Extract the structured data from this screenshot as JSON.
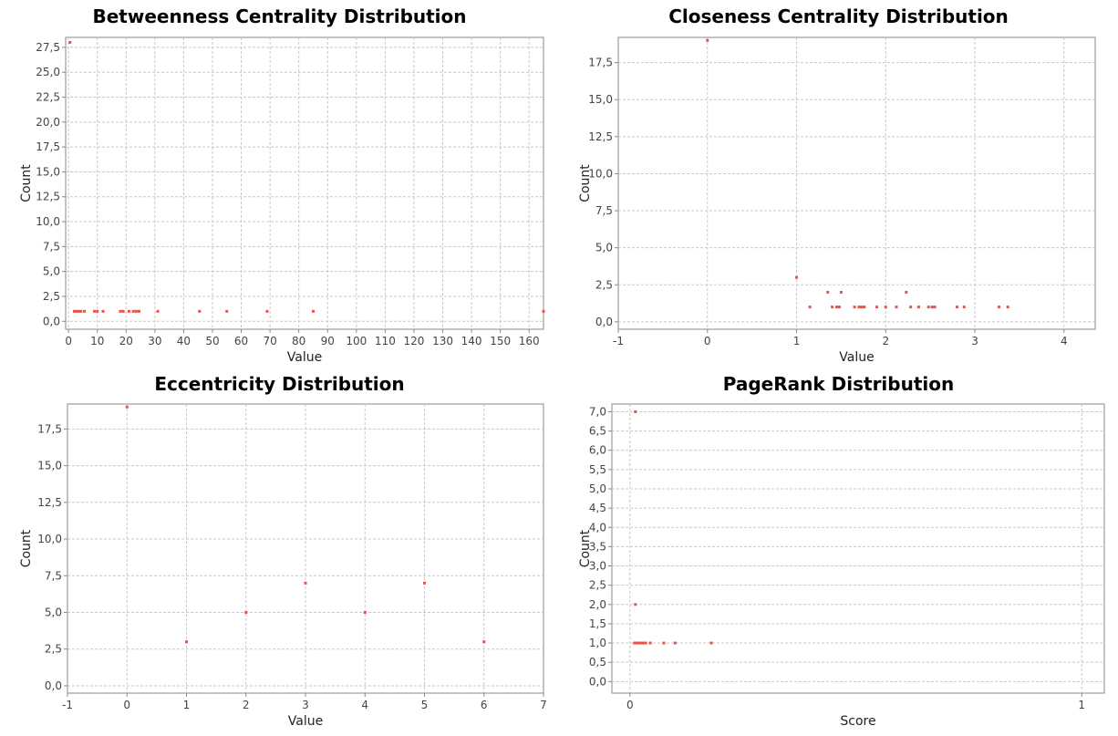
{
  "chart_data": [
    {
      "type": "scatter",
      "title": "Betweenness Centrality Distribution",
      "xlabel": "Value",
      "ylabel": "Count",
      "xlim": [
        -1,
        165
      ],
      "ylim": [
        -0.8,
        28.5
      ],
      "xticks": [
        0,
        10,
        20,
        30,
        40,
        50,
        60,
        70,
        80,
        90,
        100,
        110,
        120,
        130,
        140,
        150,
        160
      ],
      "xtick_labels": [
        "0",
        "10",
        "20",
        "30",
        "40",
        "50",
        "60",
        "70",
        "80",
        "90",
        "100",
        "110",
        "120",
        "130",
        "140",
        "150",
        "160"
      ],
      "yticks": [
        0,
        2.5,
        5,
        7.5,
        10,
        12.5,
        15,
        17.5,
        20,
        22.5,
        25,
        27.5
      ],
      "ytick_labels": [
        "0,0",
        "2,5",
        "5,0",
        "7,5",
        "10,0",
        "12,5",
        "15,0",
        "17,5",
        "20,0",
        "22,5",
        "25,0",
        "27,5"
      ],
      "color": "#e8524a",
      "points": [
        [
          0.5,
          28
        ],
        [
          2,
          1
        ],
        [
          2.8,
          1
        ],
        [
          3.5,
          1
        ],
        [
          4.3,
          1
        ],
        [
          5.5,
          1
        ],
        [
          9,
          1
        ],
        [
          10,
          1
        ],
        [
          12,
          1
        ],
        [
          18,
          1
        ],
        [
          19,
          1
        ],
        [
          21,
          1
        ],
        [
          22.5,
          1
        ],
        [
          23.5,
          1
        ],
        [
          24.5,
          1
        ],
        [
          31,
          1
        ],
        [
          45.5,
          1
        ],
        [
          55,
          1
        ],
        [
          69,
          1
        ],
        [
          85,
          1
        ],
        [
          165,
          1
        ]
      ]
    },
    {
      "type": "scatter",
      "title": "Closeness Centrality Distribution",
      "xlabel": "Value",
      "ylabel": "Count",
      "xlim": [
        -1,
        4.35
      ],
      "ylim": [
        -0.5,
        19.2
      ],
      "xticks": [
        -1,
        0,
        1,
        2,
        3,
        4
      ],
      "xtick_labels": [
        "-1",
        "0",
        "1",
        "2",
        "3",
        "4"
      ],
      "yticks": [
        0,
        2.5,
        5,
        7.5,
        10,
        12.5,
        15,
        17.5
      ],
      "ytick_labels": [
        "0,0",
        "2,5",
        "5,0",
        "7,5",
        "10,0",
        "12,5",
        "15,0",
        "17,5"
      ],
      "color": "#e8524a",
      "points": [
        [
          0,
          19
        ],
        [
          1,
          3
        ],
        [
          1.15,
          1
        ],
        [
          1.35,
          2
        ],
        [
          1.4,
          1
        ],
        [
          1.45,
          1
        ],
        [
          1.5,
          2
        ],
        [
          1.48,
          1
        ],
        [
          1.65,
          1
        ],
        [
          1.7,
          1
        ],
        [
          1.73,
          1
        ],
        [
          1.76,
          1
        ],
        [
          1.9,
          1
        ],
        [
          2.0,
          1
        ],
        [
          2.12,
          1
        ],
        [
          2.23,
          2
        ],
        [
          2.28,
          1
        ],
        [
          2.37,
          1
        ],
        [
          2.48,
          1
        ],
        [
          2.52,
          1
        ],
        [
          2.55,
          1
        ],
        [
          2.8,
          1
        ],
        [
          2.88,
          1
        ],
        [
          3.27,
          1
        ],
        [
          3.37,
          1
        ]
      ]
    },
    {
      "type": "scatter",
      "title": "Eccentricity Distribution",
      "xlabel": "Value",
      "ylabel": "Count",
      "xlim": [
        -1,
        7
      ],
      "ylim": [
        -0.5,
        19.2
      ],
      "xticks": [
        -1,
        0,
        1,
        2,
        3,
        4,
        5,
        6,
        7
      ],
      "xtick_labels": [
        "-1",
        "0",
        "1",
        "2",
        "3",
        "4",
        "5",
        "6",
        "7"
      ],
      "yticks": [
        0,
        2.5,
        5,
        7.5,
        10,
        12.5,
        15,
        17.5
      ],
      "ytick_labels": [
        "0,0",
        "2,5",
        "5,0",
        "7,5",
        "10,0",
        "12,5",
        "15,0",
        "17,5"
      ],
      "color": "#e8524a",
      "points": [
        [
          0,
          19
        ],
        [
          1,
          3
        ],
        [
          2,
          5
        ],
        [
          3,
          7
        ],
        [
          4,
          5
        ],
        [
          5,
          7
        ],
        [
          6,
          3
        ]
      ]
    },
    {
      "type": "scatter",
      "title": "PageRank Distribution",
      "xlabel": "Score",
      "ylabel": "Count",
      "xlim": [
        -0.04,
        1.05
      ],
      "ylim": [
        -0.3,
        7.2
      ],
      "xticks": [
        0,
        1
      ],
      "xtick_labels": [
        "0",
        "1"
      ],
      "yticks": [
        0,
        0.5,
        1,
        1.5,
        2,
        2.5,
        3,
        3.5,
        4,
        4.5,
        5,
        5.5,
        6,
        6.5,
        7
      ],
      "ytick_labels": [
        "0,0",
        "0,5",
        "1,0",
        "1,5",
        "2,0",
        "2,5",
        "3,0",
        "3,5",
        "4,0",
        "4,5",
        "5,0",
        "5,5",
        "6,0",
        "6,5",
        "7,0"
      ],
      "color": "#e8524a",
      "points": [
        [
          0.012,
          7
        ],
        [
          0.012,
          2
        ],
        [
          0.01,
          1
        ],
        [
          0.015,
          1
        ],
        [
          0.02,
          1
        ],
        [
          0.025,
          1
        ],
        [
          0.03,
          1
        ],
        [
          0.035,
          1
        ],
        [
          0.045,
          1
        ],
        [
          0.075,
          1
        ],
        [
          0.1,
          1
        ],
        [
          0.18,
          1
        ]
      ]
    }
  ]
}
